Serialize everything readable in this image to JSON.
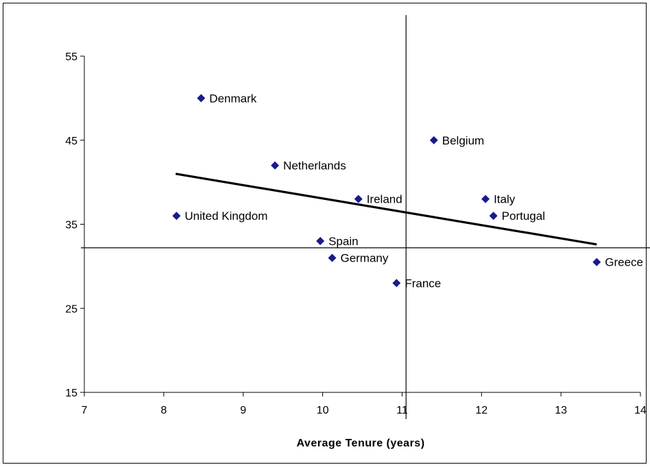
{
  "chart_data": {
    "type": "scatter",
    "title": "",
    "xlabel": "Average Tenure  (years)",
    "ylabel": "",
    "xlim": [
      7,
      14
    ],
    "ylim": [
      15,
      55
    ],
    "x_ticks": [
      7,
      8,
      9,
      10,
      11,
      12,
      13,
      14
    ],
    "y_ticks": [
      15,
      25,
      35,
      45,
      55
    ],
    "grid": false,
    "legend": "none",
    "marker": "diamond",
    "marker_color": "#1a1a8c",
    "series": [
      {
        "points": [
          {
            "label": "Denmark",
            "x": 8.47,
            "y": 50
          },
          {
            "label": "Belgium",
            "x": 11.4,
            "y": 45
          },
          {
            "label": "Netherlands",
            "x": 9.4,
            "y": 42
          },
          {
            "label": "Ireland",
            "x": 10.45,
            "y": 38
          },
          {
            "label": "Italy",
            "x": 12.05,
            "y": 38
          },
          {
            "label": "United Kingdom",
            "x": 8.16,
            "y": 36
          },
          {
            "label": "Portugal",
            "x": 12.15,
            "y": 36
          },
          {
            "label": "Spain",
            "x": 9.97,
            "y": 33
          },
          {
            "label": "Germany",
            "x": 10.12,
            "y": 31
          },
          {
            "label": "Greece",
            "x": 13.45,
            "y": 30.5
          },
          {
            "label": "France",
            "x": 10.93,
            "y": 28
          }
        ]
      }
    ],
    "trendline": {
      "x": [
        8.15,
        13.45
      ],
      "y": [
        41,
        32.6
      ]
    },
    "reference_lines": {
      "vertical_x": 11.05,
      "horizontal_y": 32.2
    }
  }
}
